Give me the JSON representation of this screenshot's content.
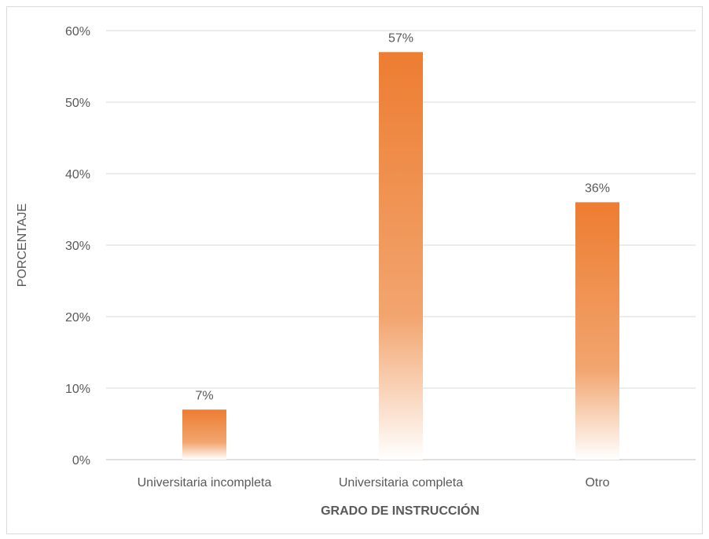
{
  "chart_data": {
    "type": "bar",
    "categories": [
      "Universitaria incompleta",
      "Universitaria completa",
      "Otro"
    ],
    "values": [
      7,
      57,
      36
    ],
    "data_labels": [
      "7%",
      "57%",
      "36%"
    ],
    "value_unit": "%",
    "ylim": [
      0,
      60
    ],
    "yticks": [
      0,
      10,
      20,
      30,
      40,
      50,
      60
    ],
    "ytick_labels": [
      "0%",
      "10%",
      "20%",
      "30%",
      "40%",
      "50%",
      "60%"
    ],
    "xlabel": "GRADO DE INSTRUCCIÓN",
    "ylabel": "PORCENTAJE",
    "grid": true,
    "legend": false,
    "bar_color": "#ED7D31",
    "bar_fill": "gradient-fade-to-white"
  }
}
